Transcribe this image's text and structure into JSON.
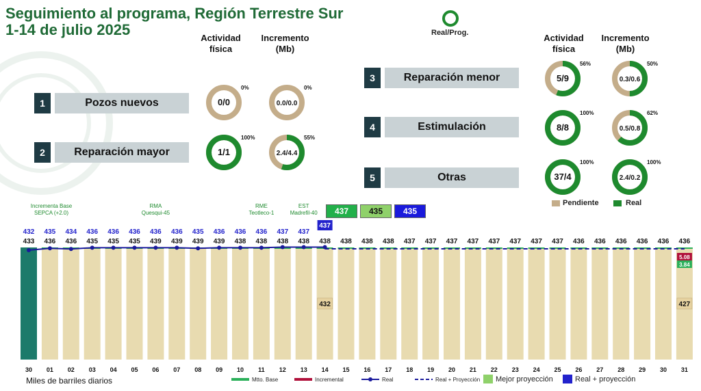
{
  "header": {
    "title_line1": "Seguimiento al programa, Región Terrestre Sur",
    "title_line2": "1-14 de julio 2025",
    "ring_legend_label": "Real/Prog."
  },
  "columns": {
    "left": {
      "actividad": [
        "Actividad",
        "física"
      ],
      "incremento": [
        "Incremento",
        "(Mb)"
      ]
    },
    "right": {
      "actividad": [
        "Actividad",
        "física"
      ],
      "incremento": [
        "Incremento",
        "(Mb)"
      ]
    }
  },
  "categories": [
    {
      "num": "1",
      "label": "Pozos nuevos",
      "act_text": "0/0",
      "act_pct": 0,
      "act_pct_label": "0%",
      "inc_text": "0.0/0.0",
      "inc_pct": 0,
      "inc_pct_label": "0%"
    },
    {
      "num": "2",
      "label": "Reparación mayor",
      "act_text": "1/1",
      "act_pct": 100,
      "act_pct_label": "100%",
      "inc_text": "2.4/4.4",
      "inc_pct": 55,
      "inc_pct_label": "55%"
    },
    {
      "num": "3",
      "label": "Reparación menor",
      "act_text": "5/9",
      "act_pct": 56,
      "act_pct_label": "56%",
      "inc_text": "0.3/0.6",
      "inc_pct": 50,
      "inc_pct_label": "50%"
    },
    {
      "num": "4",
      "label": "Estimulación",
      "act_text": "8/8",
      "act_pct": 100,
      "act_pct_label": "100%",
      "inc_text": "0.5/0.8",
      "inc_pct": 62,
      "inc_pct_label": "62%"
    },
    {
      "num": "5",
      "label": "Otras",
      "act_text": "37/4",
      "act_pct": 100,
      "act_pct_label": "100%",
      "inc_text": "2.4/0.2",
      "inc_pct": 100,
      "inc_pct_label": "100%"
    }
  ],
  "donut_legend": {
    "pending": "Pendiente",
    "real": "Real"
  },
  "colors": {
    "real": "#1e8a2e",
    "pending": "#c4ad8a",
    "bar": "#e8dbb0",
    "bar_first": "#1c7a6a",
    "blue": "#2222cc",
    "red": "#b0103a",
    "green_base": "#2bb05a",
    "light_green": "#8fd16a"
  },
  "summary_boxes": [
    {
      "value": "437",
      "bg": "#22b04a",
      "fg": "#ffffff"
    },
    {
      "value": "435",
      "bg": "#8fd16a",
      "fg": "#111111"
    },
    {
      "value": "435",
      "bg": "#1a1adc",
      "fg": "#ffffff"
    }
  ],
  "chart_data": {
    "type": "bar",
    "ylabel": "Miles de barriles diarios",
    "categories": [
      "30",
      "01",
      "02",
      "03",
      "04",
      "05",
      "06",
      "07",
      "08",
      "09",
      "10",
      "11",
      "12",
      "13",
      "14",
      "15",
      "16",
      "17",
      "18",
      "19",
      "20",
      "21",
      "22",
      "23",
      "24",
      "25",
      "26",
      "27",
      "28",
      "29",
      "30",
      "31"
    ],
    "series": [
      {
        "name": "Real",
        "values": [
          432,
          435,
          434,
          436,
          436,
          436,
          436,
          436,
          435,
          436,
          436,
          436,
          437,
          437,
          437,
          null,
          null,
          null,
          null,
          null,
          null,
          null,
          null,
          null,
          null,
          null,
          null,
          null,
          null,
          null,
          null,
          null
        ]
      },
      {
        "name": "Real + Proyección",
        "values": [
          433,
          436,
          436,
          435,
          435,
          435,
          439,
          439,
          439,
          439,
          438,
          438,
          438,
          438,
          438,
          438,
          438,
          438,
          437,
          437,
          437,
          437,
          437,
          437,
          437,
          437,
          436,
          436,
          436,
          436,
          436,
          436
        ]
      }
    ],
    "top_labels": [
      "432",
      "435",
      "434",
      "436",
      "436",
      "436",
      "436",
      "436",
      "435",
      "436",
      "436",
      "436",
      "437",
      "437",
      "437"
    ],
    "second_labels": [
      "433",
      "436",
      "436",
      "435",
      "435",
      "435",
      "439",
      "439",
      "439",
      "439",
      "438",
      "438",
      "438",
      "438",
      "438",
      "438",
      "438",
      "438",
      "437",
      "437",
      "437",
      "437",
      "437",
      "437",
      "437",
      "437",
      "436",
      "436",
      "436",
      "436",
      "436",
      "436"
    ],
    "bar_inner_labels": [
      {
        "index": 14,
        "text": "432"
      },
      {
        "index": 31,
        "text": "427"
      }
    ],
    "last_day_increments": [
      {
        "text": "5.08",
        "series": "Incremental"
      },
      {
        "text": "3.84",
        "series": "Mtto. Base"
      }
    ],
    "annotations": [
      {
        "index": 1,
        "lines": [
          "Incrementa Base",
          "SEPCA (+2.0)"
        ]
      },
      {
        "index": 6,
        "lines": [
          "RMA",
          "Quesqui-45"
        ]
      },
      {
        "index": 11,
        "lines": [
          "RME",
          "Teotleco-1"
        ]
      },
      {
        "index": 13,
        "lines": [
          "EST",
          "Madrefil-40"
        ]
      }
    ],
    "legend": [
      "Mtto. Base",
      "Incremental",
      "Real",
      "Real + Proyección",
      "Mejor proyección",
      "Real + proyección"
    ]
  }
}
